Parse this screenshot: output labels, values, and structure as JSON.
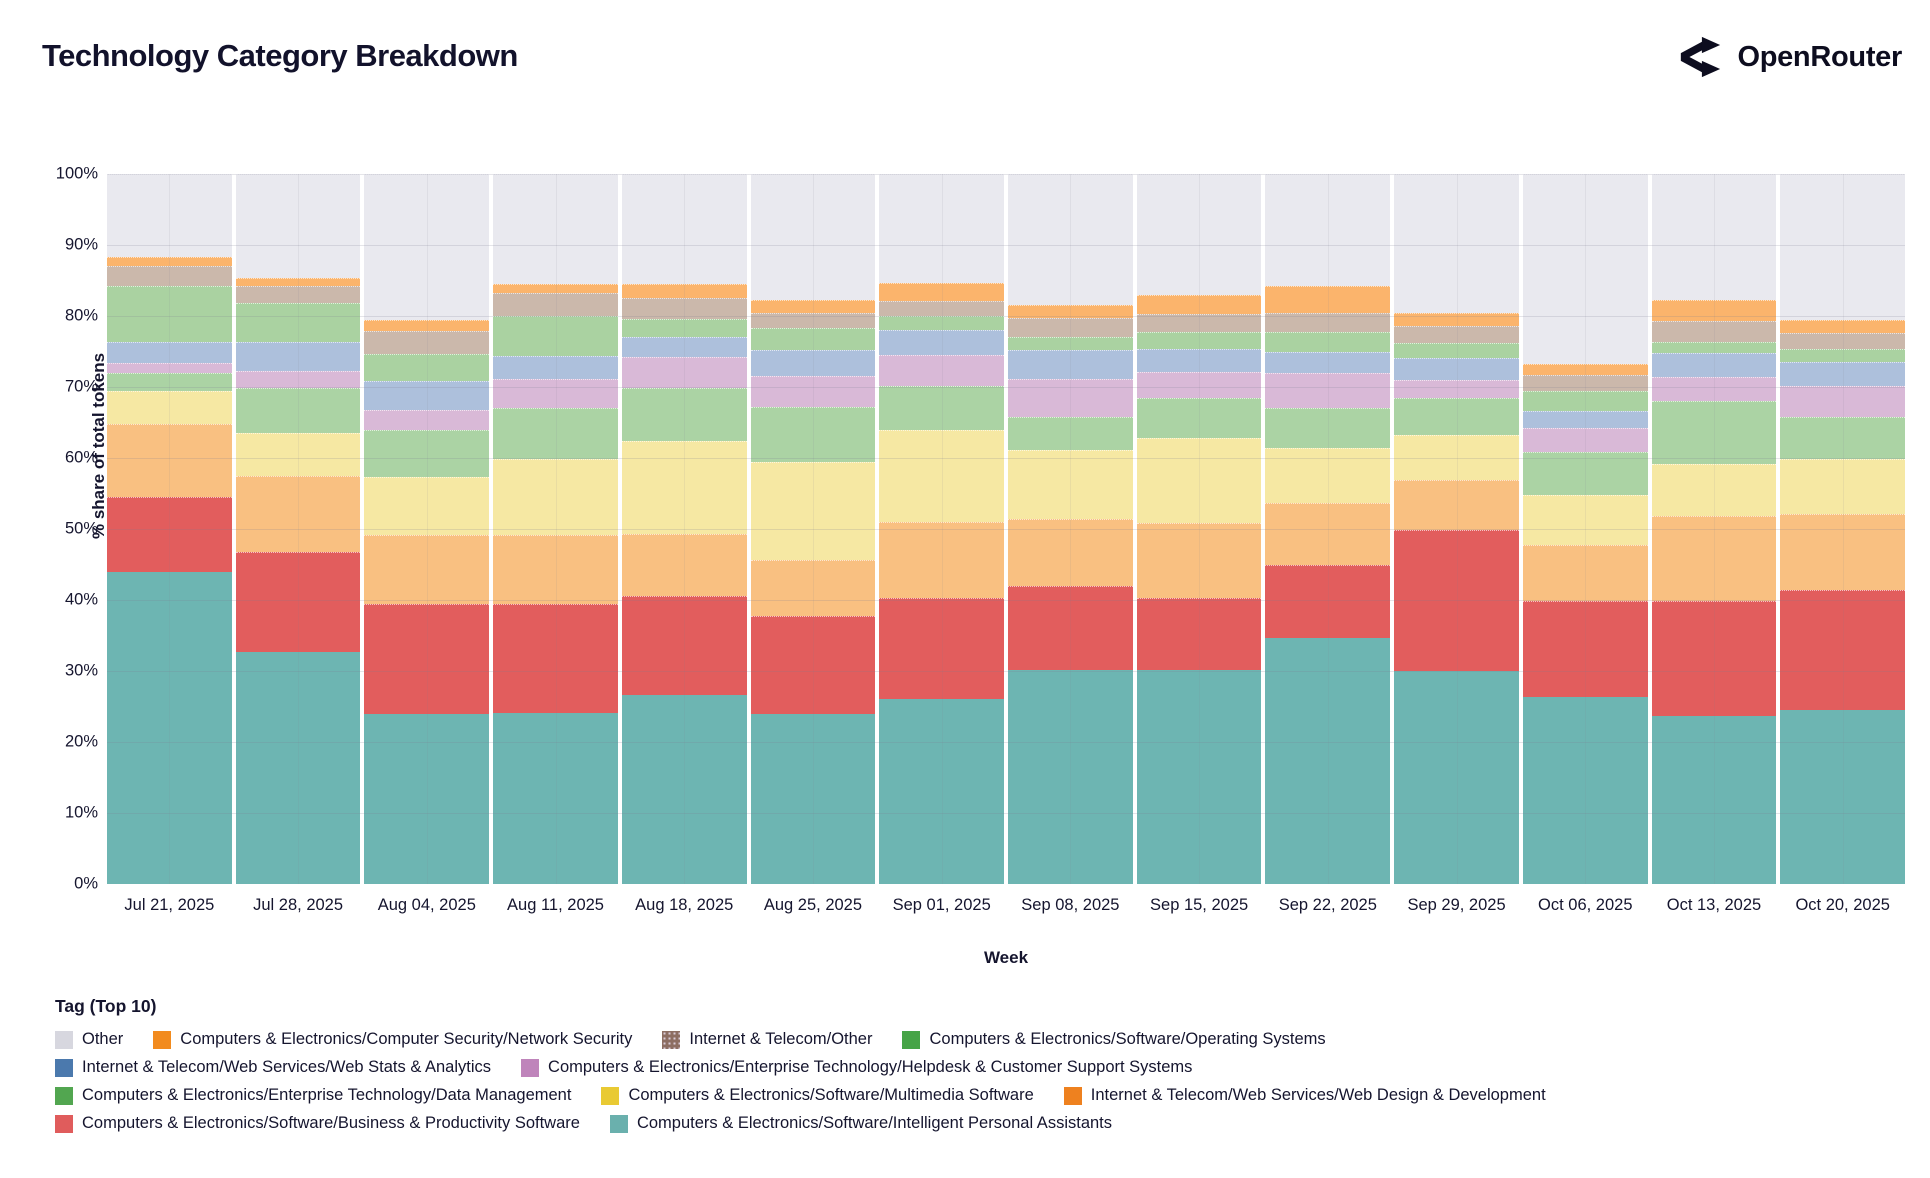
{
  "page": {
    "title": "Technology Category Breakdown",
    "brand": "OpenRouter"
  },
  "axes": {
    "y_title": "% share of total tokens",
    "x_title": "Week",
    "y_ticks": [
      "0%",
      "10%",
      "20%",
      "30%",
      "40%",
      "50%",
      "60%",
      "70%",
      "80%",
      "90%",
      "100%"
    ]
  },
  "legend": {
    "title": "Tag (Top 10)",
    "order": [
      "other",
      "ns",
      "ito",
      "os",
      "wsa",
      "hd",
      "dm",
      "mm",
      "wdd",
      "bps",
      "ipa"
    ]
  },
  "chart_data": {
    "type": "bar",
    "stacked": true,
    "percent": true,
    "title": "Technology Category Breakdown",
    "xlabel": "Week",
    "ylabel": "% share of total tokens",
    "ylim": [
      0,
      100
    ],
    "grid": true,
    "legend_position": "bottom",
    "categories": [
      "Jul 21, 2025",
      "Jul 28, 2025",
      "Aug 04, 2025",
      "Aug 11, 2025",
      "Aug 18, 2025",
      "Aug 25, 2025",
      "Sep 01, 2025",
      "Sep 08, 2025",
      "Sep 15, 2025",
      "Sep 22, 2025",
      "Sep 29, 2025",
      "Oct 06, 2025",
      "Oct 13, 2025",
      "Oct 20, 2025"
    ],
    "series": [
      {
        "key": "ipa",
        "name": "Computers & Electronics/Software/Intelligent Personal Assistants",
        "legend_color": "#6ab0ad",
        "fill": "#6db5b2",
        "pattern": false,
        "values": [
          44.0,
          32.7,
          23.9,
          24.1,
          26.6,
          24.0,
          26.0,
          30.2,
          30.2,
          34.7,
          30.0,
          26.3,
          23.7,
          24.5
        ]
      },
      {
        "key": "bps",
        "name": "Computers & Electronics/Software/Business & Productivity Software",
        "legend_color": "#e05c5c",
        "fill": "#e25d5d",
        "pattern": false,
        "values": [
          10.5,
          14.0,
          15.6,
          15.3,
          14.0,
          13.7,
          14.3,
          11.8,
          10.1,
          10.2,
          19.9,
          13.5,
          16.1,
          16.9
        ]
      },
      {
        "key": "wdd",
        "name": "Internet & Telecom/Web Services/Web Design & Development",
        "legend_color": "#ee811f",
        "fill": "#f9c081",
        "pattern": false,
        "values": [
          10.3,
          10.7,
          9.7,
          9.7,
          8.7,
          8.0,
          10.7,
          9.4,
          10.5,
          8.8,
          7.0,
          7.9,
          12.1,
          10.7
        ]
      },
      {
        "key": "mm",
        "name": "Computers & Electronics/Software/Multimedia Software",
        "legend_color": "#e9ca33",
        "fill": "#f6e8a3",
        "pattern": false,
        "values": [
          4.6,
          6.1,
          8.1,
          10.8,
          13.1,
          13.8,
          13.0,
          9.7,
          12.0,
          7.7,
          6.3,
          7.1,
          7.3,
          7.7
        ]
      },
      {
        "key": "dm",
        "name": "Computers & Electronics/Enterprise Technology/Data Management",
        "legend_color": "#52a650",
        "fill": "#abd3a4",
        "pattern": false,
        "values": [
          2.6,
          6.4,
          6.6,
          7.2,
          7.5,
          7.7,
          6.1,
          4.7,
          5.7,
          5.7,
          5.2,
          6.1,
          8.8,
          6.0
        ]
      },
      {
        "key": "hd",
        "name": "Computers & Electronics/Enterprise Technology/Helpdesk & Customer Support Systems",
        "legend_color": "#bf84bb",
        "fill": "#d9b9d7",
        "pattern": true,
        "values": [
          1.4,
          2.4,
          2.9,
          4.1,
          4.4,
          4.3,
          4.4,
          5.3,
          3.6,
          4.9,
          2.6,
          3.4,
          3.4,
          4.3
        ]
      },
      {
        "key": "wsa",
        "name": "Internet & Telecom/Web Services/Web Stats & Analytics",
        "legend_color": "#4b79ad",
        "fill": "#adc0dc",
        "pattern": false,
        "values": [
          2.9,
          4.1,
          4.0,
          3.2,
          2.8,
          3.7,
          3.5,
          4.1,
          3.2,
          2.9,
          3.1,
          2.4,
          3.4,
          3.5
        ]
      },
      {
        "key": "os",
        "name": "Computers & Electronics/Software/Operating Systems",
        "legend_color": "#46a447",
        "fill": "#aad2a1",
        "pattern": false,
        "values": [
          7.9,
          5.4,
          3.9,
          5.6,
          2.5,
          3.1,
          2.0,
          1.9,
          2.4,
          2.8,
          2.1,
          2.8,
          1.6,
          1.8
        ]
      },
      {
        "key": "ito",
        "name": "Internet & Telecom/Other",
        "legend_color": "#8d6e63",
        "fill": "#cbb8ab",
        "pattern": false,
        "legend_pattern": true,
        "values": [
          2.9,
          2.5,
          3.2,
          3.2,
          2.9,
          2.2,
          2.1,
          2.7,
          2.6,
          2.8,
          2.4,
          2.2,
          2.9,
          2.2
        ]
      },
      {
        "key": "ns",
        "name": "Computers & Electronics/Computer Security/Network Security",
        "legend_color": "#f28b1e",
        "fill": "#fbb46c",
        "pattern": false,
        "values": [
          1.2,
          1.0,
          1.5,
          1.3,
          2.0,
          1.7,
          2.5,
          1.7,
          2.7,
          3.7,
          1.9,
          1.6,
          2.9,
          1.8
        ]
      },
      {
        "key": "other",
        "name": "Other",
        "legend_color": "#d7d7df",
        "fill": "#e9e9ef",
        "pattern": false,
        "values": [
          11.7,
          14.7,
          20.6,
          15.5,
          15.5,
          17.8,
          15.4,
          18.5,
          17.0,
          15.8,
          19.5,
          26.7,
          17.8,
          20.6
        ]
      }
    ]
  }
}
